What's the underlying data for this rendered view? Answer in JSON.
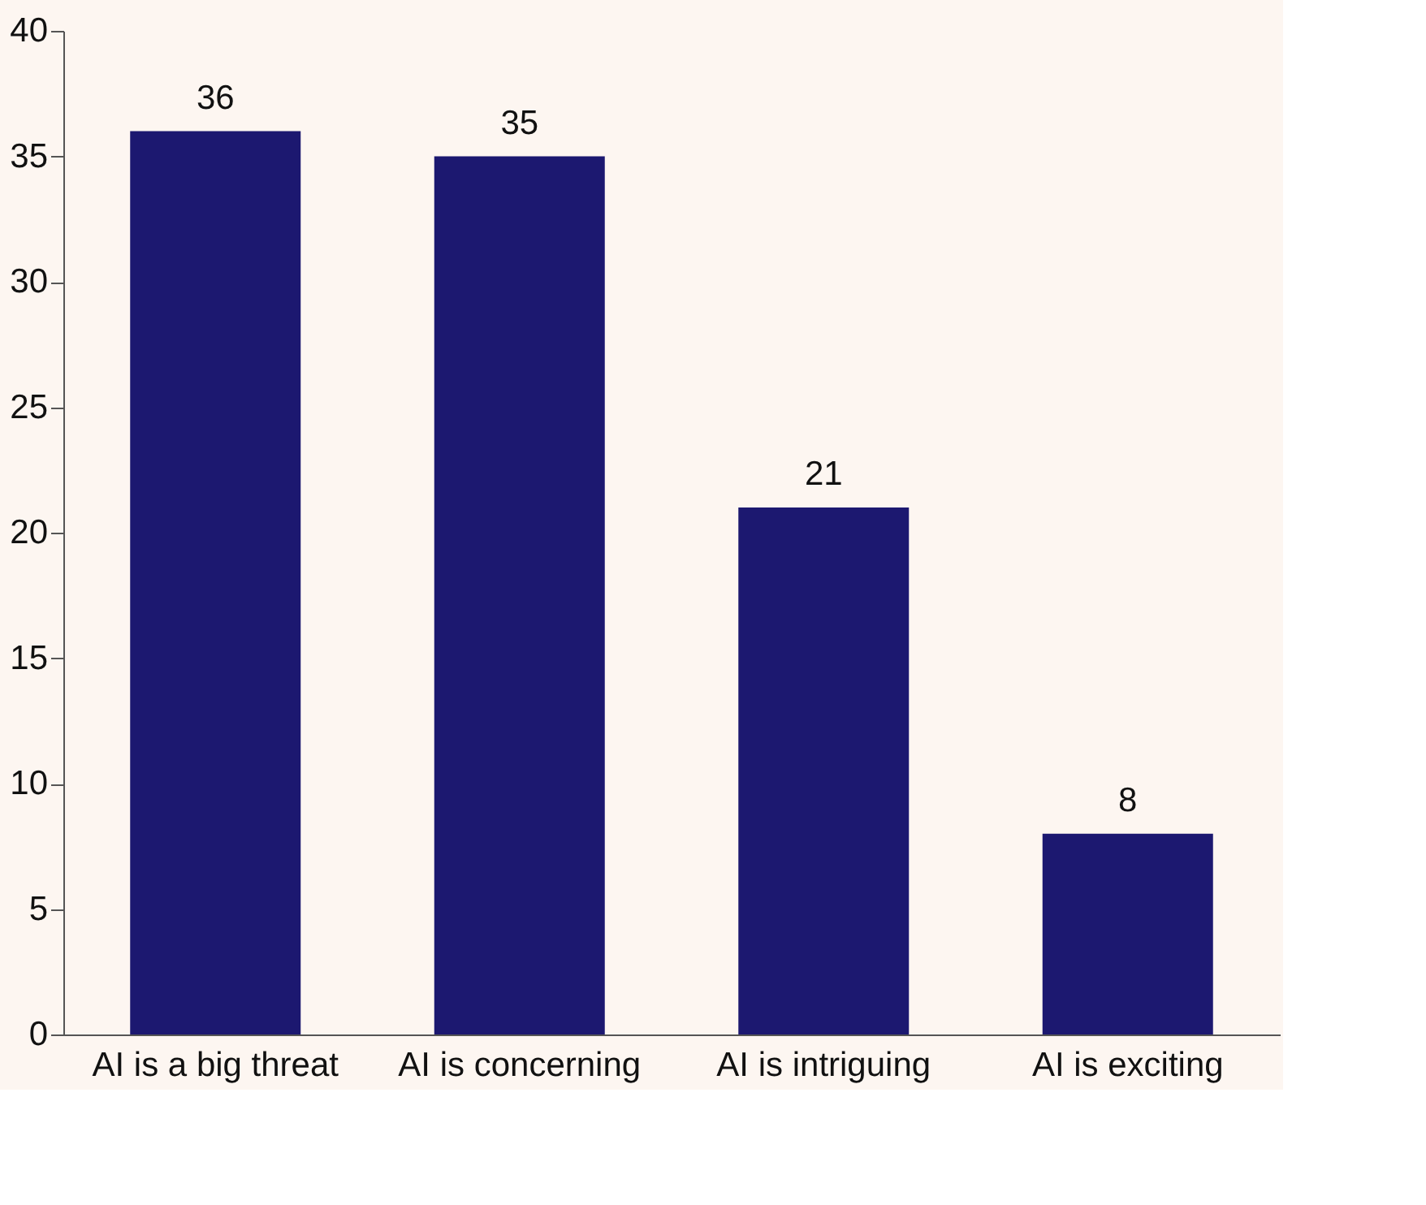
{
  "chart_data": {
    "type": "bar",
    "categories": [
      "AI is a big threat",
      "AI is concerning",
      "AI is intriguing",
      "AI is exciting"
    ],
    "values": [
      36,
      35,
      21,
      8
    ],
    "color": "#1c1870",
    "ylim": [
      0,
      40
    ],
    "yticks": [
      0,
      5,
      10,
      15,
      20,
      25,
      30,
      35,
      40
    ],
    "grid": false,
    "data_labels": true
  }
}
